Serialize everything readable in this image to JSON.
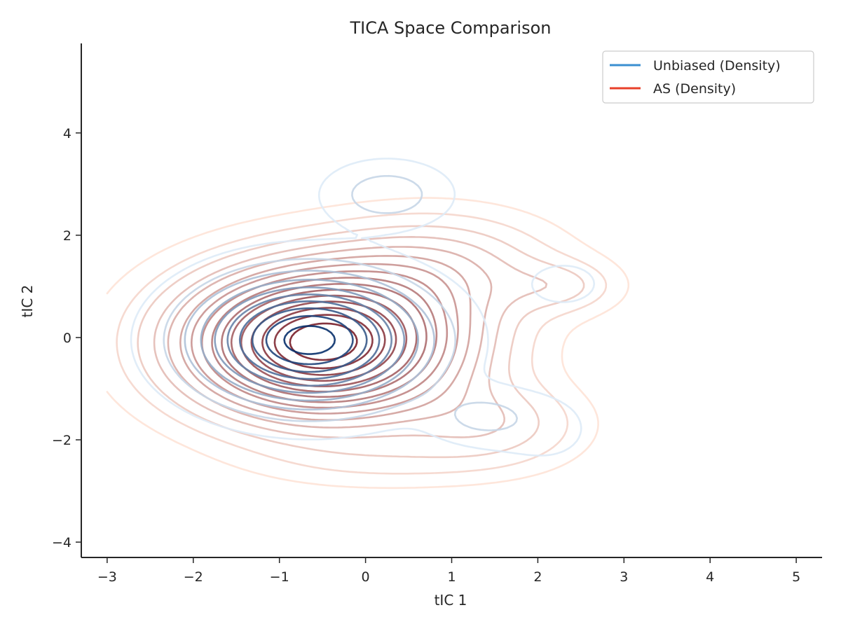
{
  "chart_data": {
    "type": "contour",
    "title": "TICA Space Comparison",
    "xlabel": "tIC 1",
    "ylabel": "tIC 2",
    "xlim": [
      -3.3,
      5.3
    ],
    "ylim": [
      -4.3,
      5.75
    ],
    "xticks": [
      -3,
      -2,
      -1,
      0,
      1,
      2,
      3,
      4,
      5
    ],
    "yticks": [
      -4,
      -2,
      0,
      2,
      4
    ],
    "xtick_labels": [
      "−3",
      "−2",
      "−1",
      "0",
      "1",
      "2",
      "3",
      "4",
      "5"
    ],
    "ytick_labels": [
      "−4",
      "−2",
      "0",
      "2",
      "4"
    ],
    "grid": false,
    "legend": {
      "placement": "top-right",
      "entries": [
        "Unbiased (Density)",
        "AS (Density)"
      ]
    },
    "series": [
      {
        "name": "Unbiased (Density)",
        "kind": "kde-contours",
        "color": "#3a8fd0",
        "palette": [
          "#deebf7",
          "#08306b"
        ],
        "modes": [
          {
            "x": -0.65,
            "y": -0.05,
            "sx": 0.8,
            "sy": 0.75,
            "weight": 1.0
          },
          {
            "x": 0.25,
            "y": 2.8,
            "sx": 0.45,
            "sy": 0.4,
            "weight": 0.16
          },
          {
            "x": 1.35,
            "y": -1.55,
            "sx": 0.4,
            "sy": 0.35,
            "weight": 0.12
          },
          {
            "x": 2.3,
            "y": 1.05,
            "sx": 0.3,
            "sy": 0.3,
            "weight": 0.07
          },
          {
            "x": 2.1,
            "y": -1.8,
            "sx": 0.45,
            "sy": 0.55,
            "weight": 0.05
          }
        ],
        "levels": 10
      },
      {
        "name": "AS (Density)",
        "kind": "kde-contours",
        "color": "#e8402a",
        "palette": [
          "#fee0d2",
          "#67000d"
        ],
        "modes": [
          {
            "x": -0.5,
            "y": -0.1,
            "sx": 1.05,
            "sy": 0.95,
            "weight": 1.0
          },
          {
            "x": 0.9,
            "y": 1.4,
            "sx": 0.9,
            "sy": 0.7,
            "weight": 0.18
          },
          {
            "x": 2.3,
            "y": 1.0,
            "sx": 0.45,
            "sy": 0.35,
            "weight": 0.1
          },
          {
            "x": 1.5,
            "y": -1.7,
            "sx": 0.7,
            "sy": 0.55,
            "weight": 0.14
          },
          {
            "x": 0.3,
            "y": -2.4,
            "sx": 1.0,
            "sy": 0.4,
            "weight": 0.06
          }
        ],
        "levels": 16
      }
    ]
  }
}
